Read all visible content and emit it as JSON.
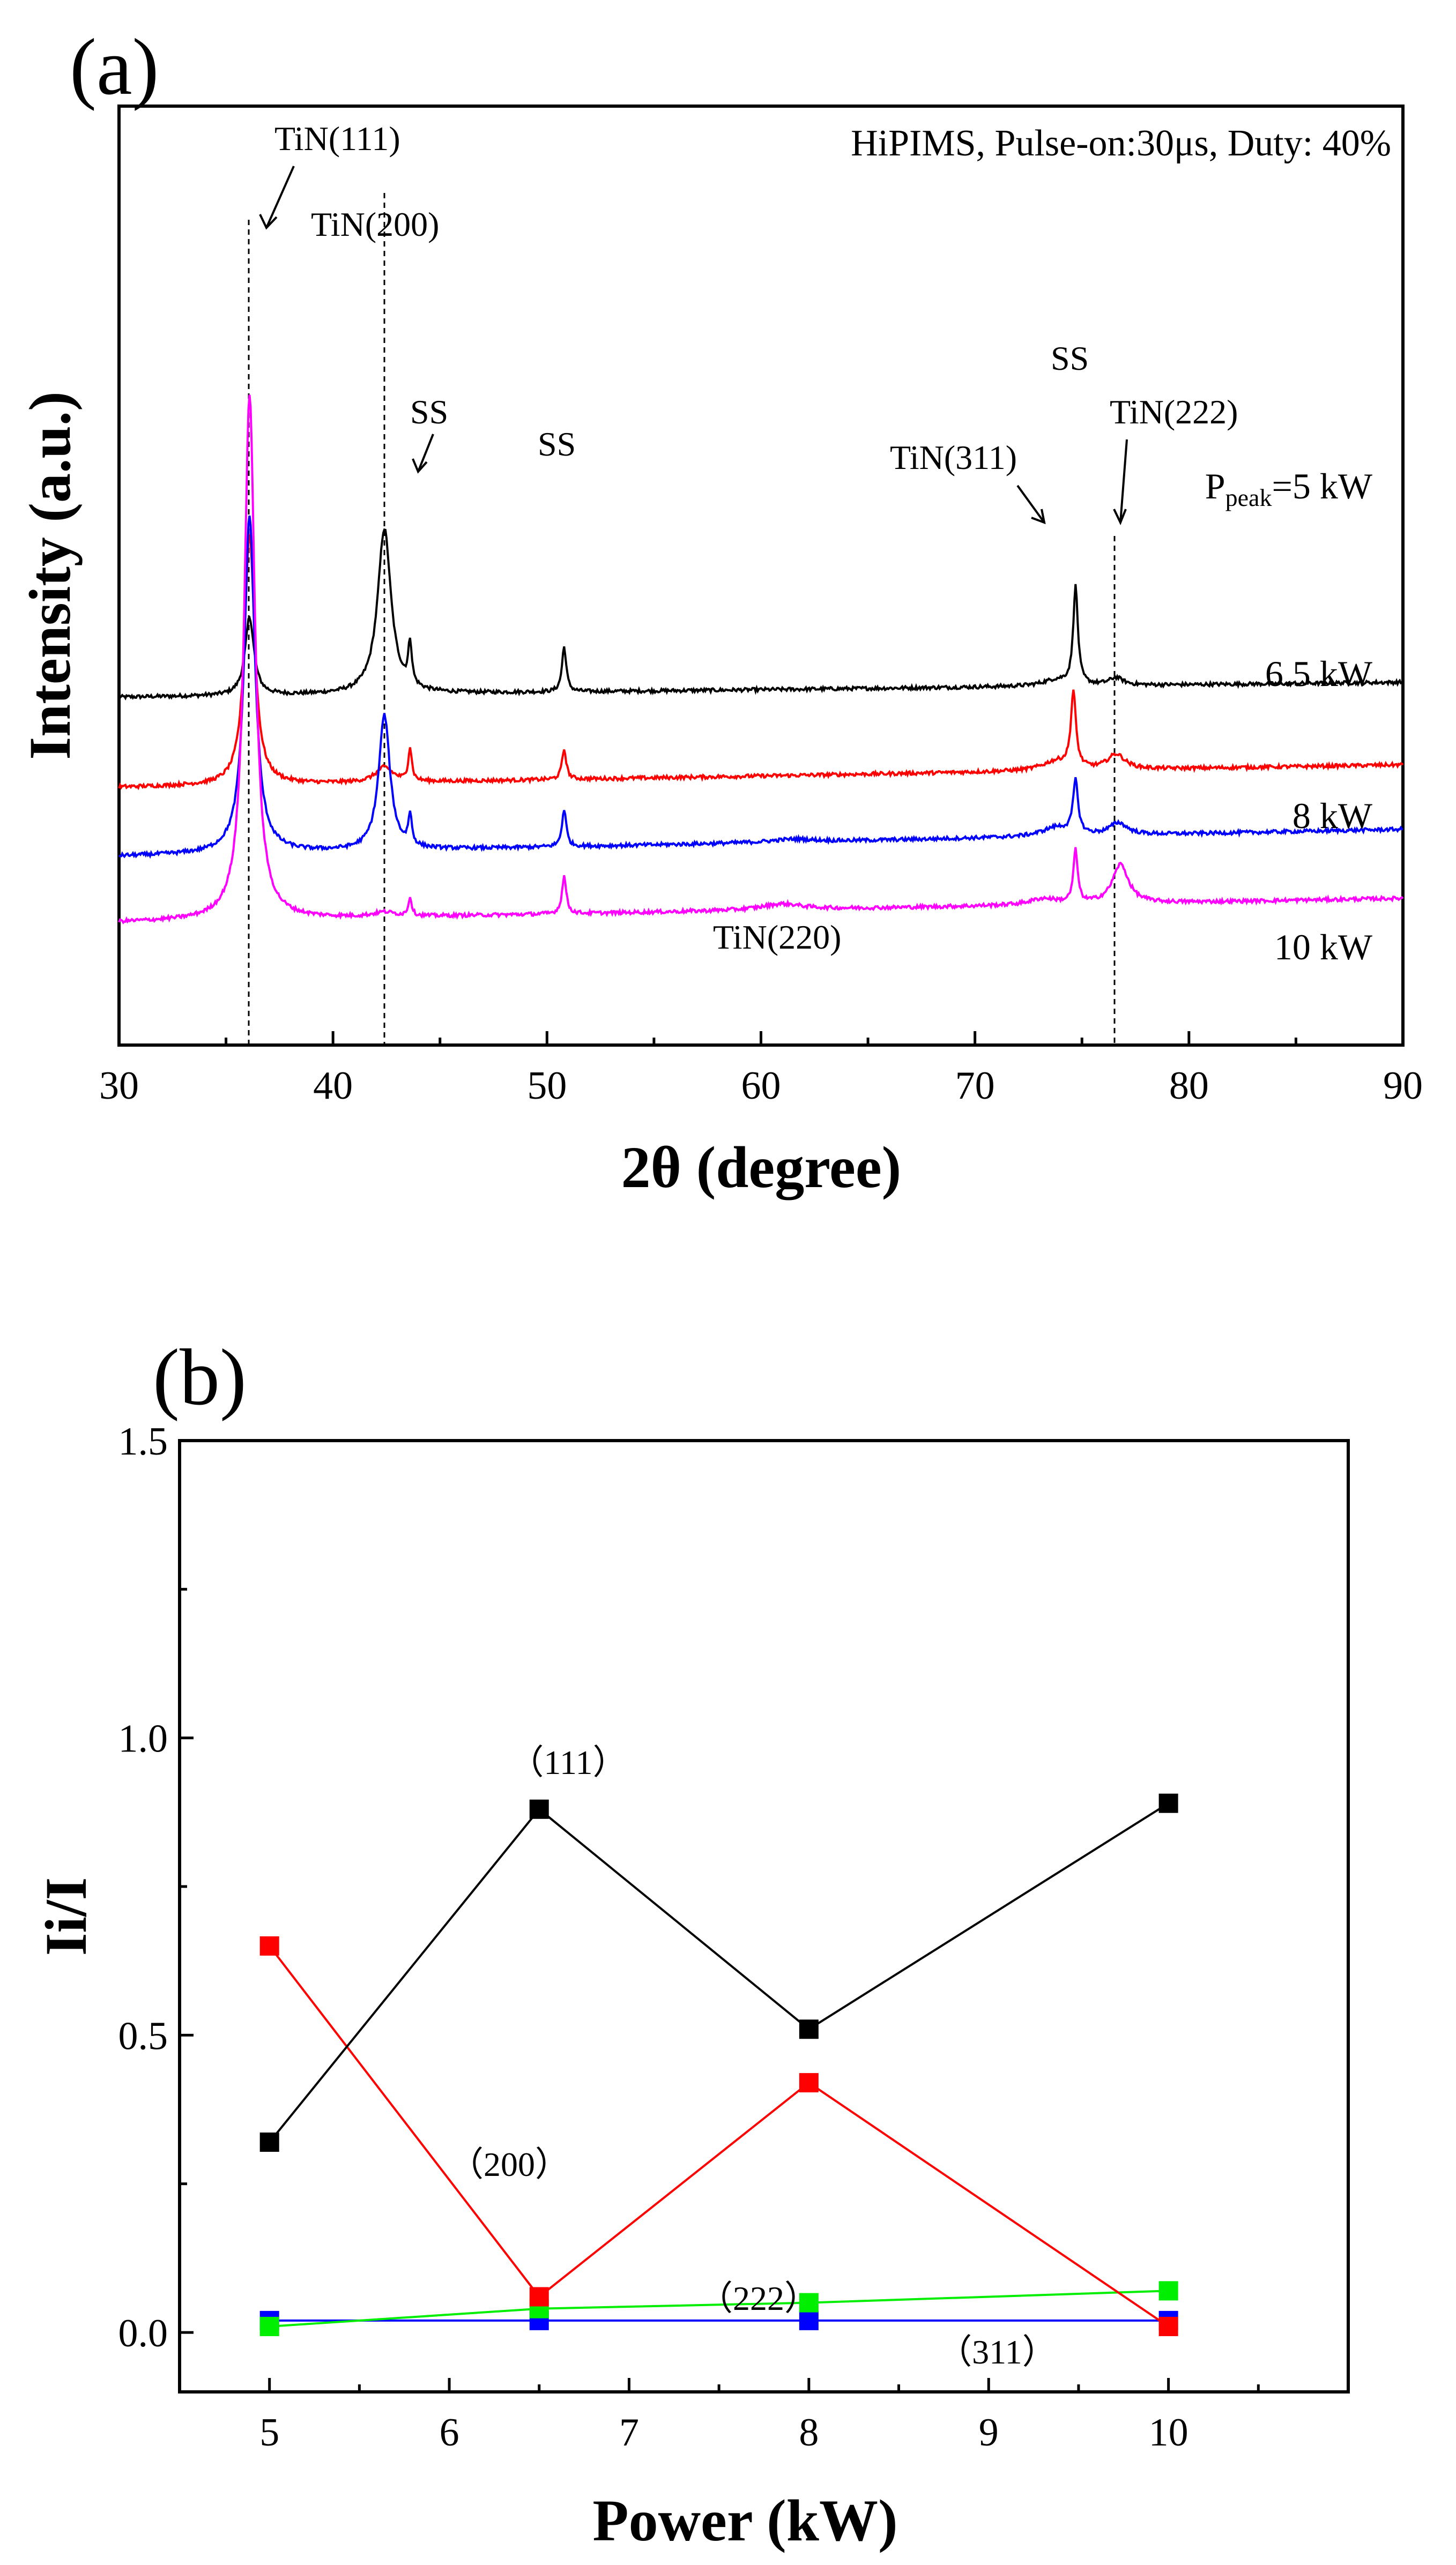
{
  "chart_data": [
    {
      "type": "line",
      "panel_label": "(a)",
      "title": "HiPIMS, Pulse-on:30μs, Duty: 40%",
      "xlabel": "2θ (degree)",
      "ylabel": "Intensity (a.u.)",
      "xlim": [
        30,
        90
      ],
      "xticks": [
        30,
        40,
        50,
        60,
        70,
        80,
        90
      ],
      "y_ticklabels_shown": false,
      "series": [
        {
          "name": "Ppeak=5 kW",
          "label_main": "P",
          "label_sub": "peak",
          "label_rest": "=5 kW",
          "color": "#000000",
          "baseline": 0.8,
          "slope": 0.1,
          "noise": 0.012,
          "peaks": [
            [
              36.1,
              0.52,
              0.25
            ],
            [
              42.4,
              1.1,
              0.38
            ],
            [
              43.6,
              0.28,
              0.1
            ],
            [
              50.8,
              0.3,
              0.12
            ],
            [
              73.8,
              0.04,
              0.8
            ],
            [
              74.7,
              0.65,
              0.13
            ],
            [
              76.6,
              0.05,
              0.4
            ]
          ]
        },
        {
          "name": "6.5 kW",
          "label": "6.5 kW",
          "color": "#ff0000",
          "baseline": 0.2,
          "slope": 0.15,
          "noise": 0.012,
          "peaks": [
            [
              36.1,
              1.68,
              0.28
            ],
            [
              42.4,
              0.1,
              0.5
            ],
            [
              43.6,
              0.22,
              0.1
            ],
            [
              50.8,
              0.2,
              0.12
            ],
            [
              73.8,
              0.06,
              0.8
            ],
            [
              74.6,
              0.5,
              0.14
            ],
            [
              76.6,
              0.1,
              0.5
            ]
          ]
        },
        {
          "name": "8 kW",
          "label": "8 kW",
          "color": "#0000ff",
          "baseline": -0.26,
          "slope": 0.18,
          "noise": 0.012,
          "peaks": [
            [
              36.1,
              2.25,
              0.3
            ],
            [
              42.4,
              0.9,
              0.32
            ],
            [
              43.6,
              0.2,
              0.1
            ],
            [
              50.8,
              0.25,
              0.12
            ],
            [
              61.5,
              0.02,
              1.2
            ],
            [
              73.8,
              0.06,
              0.8
            ],
            [
              74.7,
              0.35,
              0.14
            ],
            [
              76.7,
              0.08,
              0.5
            ]
          ]
        },
        {
          "name": "10 kW",
          "label": "10 kW",
          "color": "#ff00ff",
          "baseline": -0.7,
          "slope": 0.16,
          "noise": 0.012,
          "peaks": [
            [
              36.1,
              3.5,
              0.3
            ],
            [
              42.4,
              0.03,
              0.6
            ],
            [
              43.6,
              0.12,
              0.1
            ],
            [
              50.8,
              0.25,
              0.12
            ],
            [
              61.0,
              0.04,
              1.2
            ],
            [
              73.2,
              0.04,
              0.8
            ],
            [
              74.7,
              0.35,
              0.12
            ],
            [
              76.8,
              0.26,
              0.45
            ]
          ]
        }
      ],
      "annotations": [
        {
          "text": "TiN(111)"
        },
        {
          "text": "TiN(200)"
        },
        {
          "text": "SS"
        },
        {
          "text": "SS"
        },
        {
          "text": "SS"
        },
        {
          "text": "TiN(311)"
        },
        {
          "text": "TiN(222)"
        },
        {
          "text": "TiN(220)"
        }
      ],
      "reference_lines_x": [
        36.0,
        42.5,
        76.3
      ]
    },
    {
      "type": "line",
      "panel_label": "(b)",
      "xlabel": "Power (kW)",
      "ylabel": "Ii/I",
      "xlim": [
        4.5,
        11.0
      ],
      "ylim": [
        -0.1,
        1.5
      ],
      "xticks": [
        5,
        6,
        7,
        8,
        9,
        10
      ],
      "yticks": [
        0.0,
        0.5,
        1.0,
        1.5
      ],
      "ytick_labels": [
        "0.0",
        "0.5",
        "1.0",
        "1.5"
      ],
      "x": [
        5,
        6.5,
        8,
        10
      ],
      "series": [
        {
          "name": "(111)",
          "color": "#000000",
          "values": [
            0.32,
            0.88,
            0.51,
            0.89
          ]
        },
        {
          "name": "(200)",
          "color": "#ff0000",
          "values": [
            0.65,
            0.06,
            0.42,
            0.01
          ]
        },
        {
          "name": "(222)",
          "color": "#00ee00",
          "values": [
            0.01,
            0.04,
            0.05,
            0.07
          ]
        },
        {
          "name": "(311)",
          "color": "#0000ff",
          "values": [
            0.02,
            0.02,
            0.02,
            0.02
          ]
        }
      ],
      "series_labels": [
        "（111）",
        "（200）",
        "（222）",
        "（311）"
      ]
    }
  ]
}
